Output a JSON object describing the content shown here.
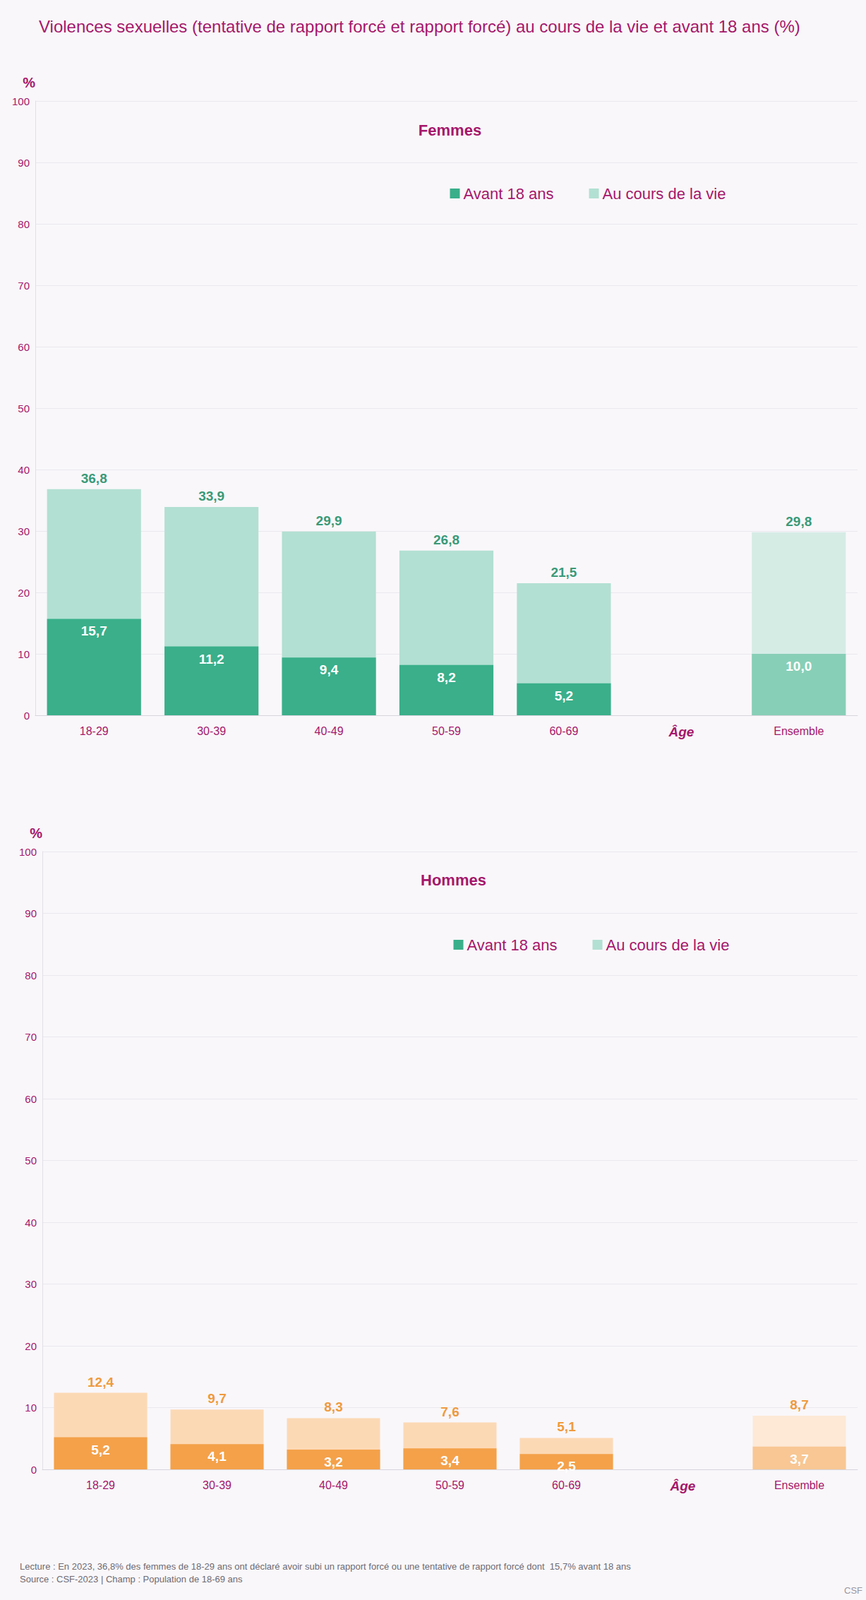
{
  "title": "Violences sexuelles (tentative de rapport forcé et rapport forcé) au cours de la vie et avant 18 ans (%)",
  "footer": [
    "Lecture : En 2023, 36,8% des femmes de 18-29 ans ont déclaré avoir subi un rapport forcé ou une tentative de rapport forcé dont  15,7% avant 18 ans",
    "Source : CSF-2023 | Champ : Population de 18-69 ans"
  ],
  "brand": "CSF",
  "chart_data": [
    {
      "type": "bar",
      "title": "Femmes",
      "categories": [
        "18-29",
        "30-39",
        "40-49",
        "50-59",
        "60-69",
        null,
        "Ensemble"
      ],
      "x_label": "Âge",
      "y_label": "%",
      "series": [
        {
          "name": "Avant 18 ans",
          "color": "#3aaf8a",
          "colors": [
            "#3aaf8a",
            "#3aaf8a",
            "#3aaf8a",
            "#3aaf8a",
            "#3aaf8a",
            null,
            "#88cfb7"
          ],
          "values": [
            15.7,
            11.2,
            9.4,
            8.2,
            5.2,
            null,
            10.0
          ],
          "value_labels": [
            "15,7",
            "11,2",
            "9,4",
            "8,2",
            "5,2",
            null,
            "10,0"
          ]
        },
        {
          "name": "Au cours de la vie",
          "color": "#b2e0d2",
          "colors": [
            "#b2e0d2",
            "#b2e0d2",
            "#b2e0d2",
            "#b2e0d2",
            "#b2e0d2",
            null,
            "#d5ece5"
          ],
          "values": [
            36.8,
            33.9,
            29.9,
            26.8,
            21.5,
            null,
            29.8
          ],
          "value_labels": [
            "36,8",
            "33,9",
            "29,9",
            "26,8",
            "21,5",
            null,
            "29,8"
          ]
        }
      ],
      "ylim": [
        0,
        100
      ],
      "yticks": [
        0,
        10,
        20,
        30,
        40,
        50,
        60,
        70,
        80,
        90,
        100
      ],
      "grid": true,
      "legend": "top",
      "stacked": false,
      "data_labels": true
    },
    {
      "type": "bar",
      "title": "Hommes",
      "categories": [
        "18-29",
        "30-39",
        "40-49",
        "50-59",
        "60-69",
        null,
        "Ensemble"
      ],
      "x_label": "Âge",
      "y_label": "%",
      "series": [
        {
          "name": "Avant 18 ans",
          "color": "#f4a14a",
          "colors": [
            "#f4a14a",
            "#f4a14a",
            "#f4a14a",
            "#f4a14a",
            "#f4a14a",
            null,
            "#f8c794"
          ],
          "values": [
            5.2,
            4.1,
            3.2,
            3.4,
            2.5,
            null,
            3.7
          ],
          "value_labels": [
            "5,2",
            "4,1",
            "3,2",
            "3,4",
            "2,5",
            null,
            "3,7"
          ]
        },
        {
          "name": "Au cours de la vie",
          "color": "#fcd9b5",
          "colors": [
            "#fcd9b5",
            "#fcd9b5",
            "#fcd9b5",
            "#fcd9b5",
            "#fcd9b5",
            null,
            "#fde9d6"
          ],
          "values": [
            12.4,
            9.7,
            8.3,
            7.6,
            5.1,
            null,
            8.7
          ],
          "value_labels": [
            "12,4",
            "9,7",
            "8,3",
            "7,6",
            "5,1",
            null,
            "8,7"
          ]
        }
      ],
      "ylim": [
        0,
        100
      ],
      "yticks": [
        0,
        10,
        20,
        30,
        40,
        50,
        60,
        70,
        80,
        90,
        100
      ],
      "grid": true,
      "legend": "top",
      "stacked": false,
      "data_labels": true
    }
  ]
}
